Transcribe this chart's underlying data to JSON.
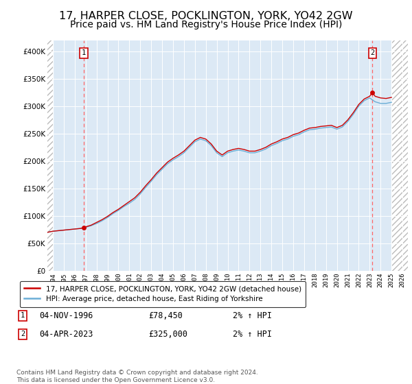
{
  "title": "17, HARPER CLOSE, POCKLINGTON, YORK, YO42 2GW",
  "subtitle": "Price paid vs. HM Land Registry's House Price Index (HPI)",
  "title_fontsize": 11.5,
  "subtitle_fontsize": 10,
  "legend_line1": "17, HARPER CLOSE, POCKLINGTON, YORK, YO42 2GW (detached house)",
  "legend_line2": "HPI: Average price, detached house, East Riding of Yorkshire",
  "sale1_date_num": 1996.84,
  "sale1_price": 78450,
  "sale1_label": "1",
  "sale2_date_num": 2023.25,
  "sale2_price": 325000,
  "sale2_label": "2",
  "footer": "Contains HM Land Registry data © Crown copyright and database right 2024.\nThis data is licensed under the Open Government Licence v3.0.",
  "hpi_color": "#6baed6",
  "price_color": "#cc0000",
  "sale_dot_color": "#cc0000",
  "vline_color": "#ff6666",
  "xlim": [
    1993.5,
    2026.5
  ],
  "ylim": [
    0,
    420000
  ],
  "yticks": [
    0,
    50000,
    100000,
    150000,
    200000,
    250000,
    300000,
    350000,
    400000
  ],
  "ytick_labels": [
    "£0",
    "£50K",
    "£100K",
    "£150K",
    "£200K",
    "£250K",
    "£300K",
    "£350K",
    "£400K"
  ],
  "xticks": [
    1994,
    1995,
    1996,
    1997,
    1998,
    1999,
    2000,
    2001,
    2002,
    2003,
    2004,
    2005,
    2006,
    2007,
    2008,
    2009,
    2010,
    2011,
    2012,
    2013,
    2014,
    2015,
    2016,
    2017,
    2018,
    2019,
    2020,
    2021,
    2022,
    2023,
    2024,
    2025,
    2026
  ],
  "hpi_years": [
    1993.5,
    1994.0,
    1994.5,
    1995.0,
    1995.5,
    1996.0,
    1996.5,
    1997.0,
    1997.5,
    1998.0,
    1998.5,
    1999.0,
    1999.5,
    2000.0,
    2000.5,
    2001.0,
    2001.5,
    2002.0,
    2002.5,
    2003.0,
    2003.5,
    2004.0,
    2004.5,
    2005.0,
    2005.5,
    2006.0,
    2006.5,
    2007.0,
    2007.5,
    2008.0,
    2008.5,
    2009.0,
    2009.5,
    2010.0,
    2010.5,
    2011.0,
    2011.5,
    2012.0,
    2012.5,
    2013.0,
    2013.5,
    2014.0,
    2014.5,
    2015.0,
    2015.5,
    2016.0,
    2016.5,
    2017.0,
    2017.5,
    2018.0,
    2018.5,
    2019.0,
    2019.5,
    2020.0,
    2020.5,
    2021.0,
    2021.5,
    2022.0,
    2022.5,
    2023.0,
    2023.5,
    2024.0,
    2024.5,
    2025.0
  ],
  "hpi_values": [
    70000,
    72000,
    73000,
    74000,
    75000,
    76000,
    77000,
    79000,
    82000,
    86000,
    91000,
    97000,
    104000,
    110000,
    117000,
    123000,
    130000,
    140000,
    152000,
    163000,
    175000,
    185000,
    195000,
    202000,
    208000,
    215000,
    225000,
    235000,
    240000,
    237000,
    228000,
    215000,
    208000,
    215000,
    218000,
    220000,
    218000,
    215000,
    215000,
    218000,
    222000,
    228000,
    232000,
    237000,
    240000,
    245000,
    248000,
    253000,
    257000,
    258000,
    260000,
    261000,
    262000,
    258000,
    262000,
    272000,
    285000,
    300000,
    310000,
    315000,
    308000,
    305000,
    305000,
    307000
  ],
  "price_years": [
    1993.5,
    1994.0,
    1994.5,
    1995.0,
    1995.5,
    1996.0,
    1996.5,
    1996.84,
    1997.0,
    1997.5,
    1998.0,
    1998.5,
    1999.0,
    1999.5,
    2000.0,
    2000.5,
    2001.0,
    2001.5,
    2002.0,
    2002.5,
    2003.0,
    2003.5,
    2004.0,
    2004.5,
    2005.0,
    2005.5,
    2006.0,
    2006.5,
    2007.0,
    2007.5,
    2008.0,
    2008.5,
    2009.0,
    2009.5,
    2010.0,
    2010.5,
    2011.0,
    2011.5,
    2012.0,
    2012.5,
    2013.0,
    2013.5,
    2014.0,
    2014.5,
    2015.0,
    2015.5,
    2016.0,
    2016.5,
    2017.0,
    2017.5,
    2018.0,
    2018.5,
    2019.0,
    2019.5,
    2020.0,
    2020.5,
    2021.0,
    2021.5,
    2022.0,
    2022.5,
    2023.0,
    2023.25,
    2023.5,
    2024.0,
    2024.5,
    2025.0
  ],
  "price_values": [
    70000,
    72000,
    73000,
    74000,
    75000,
    76000,
    77000,
    78450,
    80000,
    83000,
    88000,
    93000,
    99000,
    106000,
    112000,
    119000,
    126000,
    133000,
    143000,
    155000,
    166000,
    178000,
    188000,
    198000,
    205000,
    211000,
    218000,
    228000,
    238000,
    243000,
    240000,
    231000,
    218000,
    211000,
    218000,
    221000,
    223000,
    221000,
    218000,
    218000,
    221000,
    225000,
    231000,
    235000,
    240000,
    243000,
    248000,
    251000,
    256000,
    260000,
    261000,
    263000,
    264000,
    265000,
    261000,
    265000,
    275000,
    288000,
    303000,
    313000,
    318000,
    325000,
    318000,
    315000,
    314000,
    316000
  ]
}
